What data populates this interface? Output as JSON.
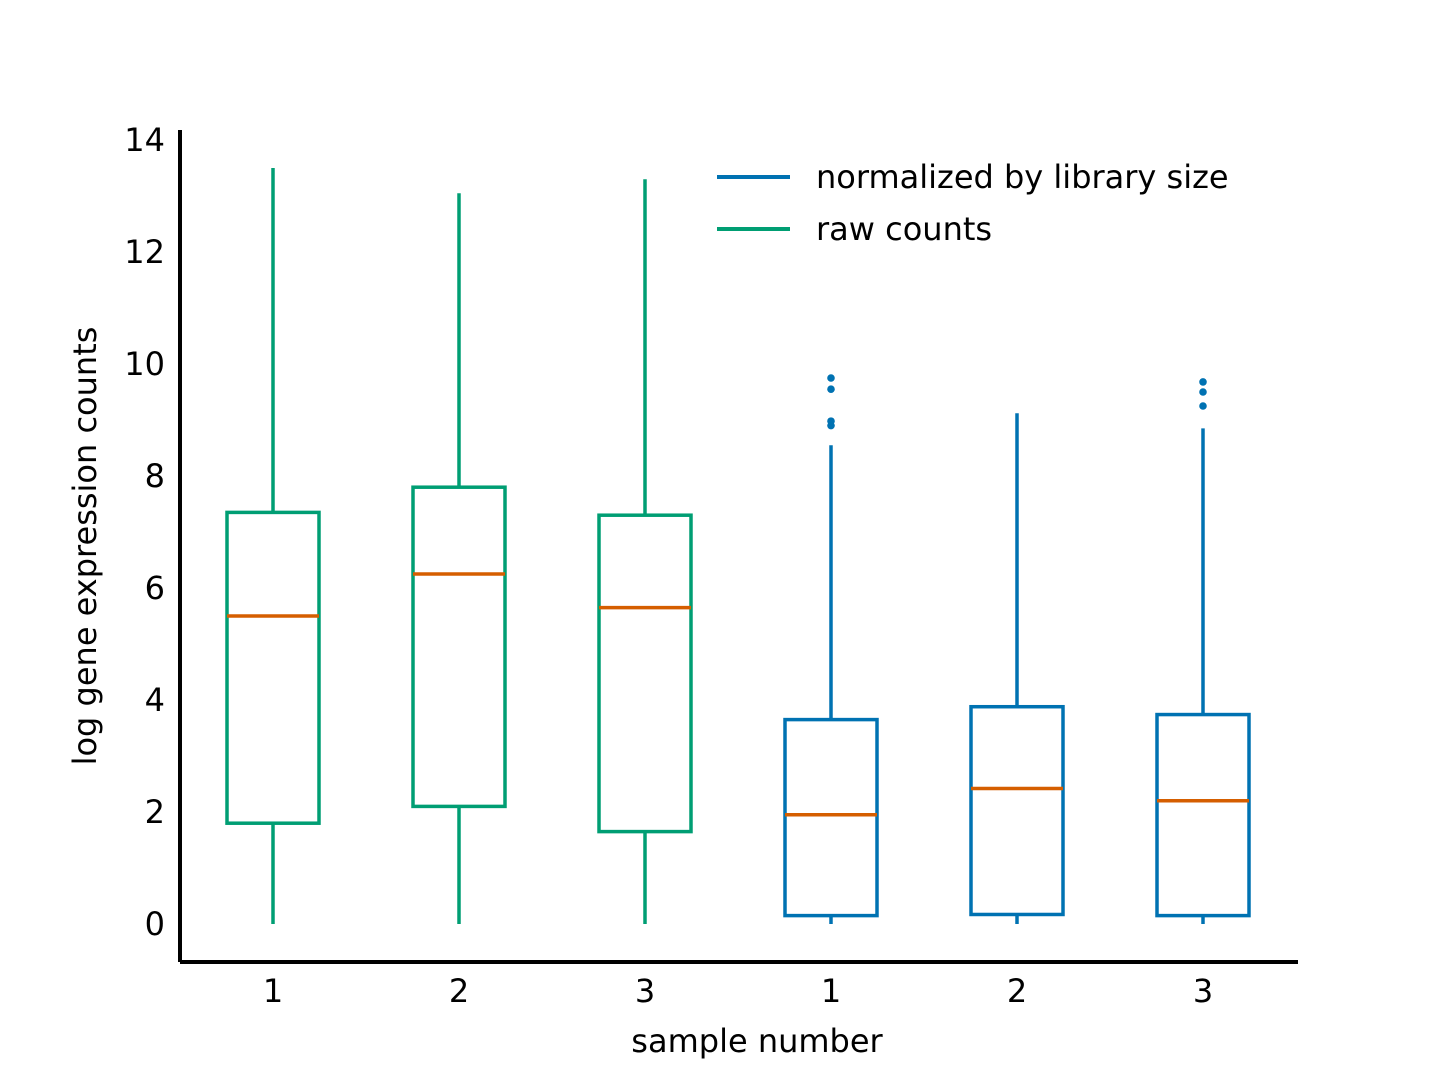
{
  "chart_data": {
    "type": "box",
    "title": "",
    "xlabel": "sample number",
    "ylabel": "log gene expression counts",
    "ylim": [
      -0.65,
      14.15
    ],
    "yticks": [
      0,
      2,
      4,
      6,
      8,
      10,
      12,
      14
    ],
    "categories": [
      "1",
      "2",
      "3",
      "1",
      "2",
      "3"
    ],
    "legend": {
      "placement": "top-right",
      "entries": [
        {
          "label": "normalized by library size",
          "color": "#0072b2"
        },
        {
          "label": "raw counts",
          "color": "#009e73"
        }
      ]
    },
    "median_color": "#d55e00",
    "series": [
      {
        "name": "raw counts",
        "color": "#009e73",
        "boxes": [
          {
            "category": "1",
            "whisker_low": 0.0,
            "q1": 1.8,
            "median": 5.5,
            "q3": 7.35,
            "whisker_high": 13.5,
            "outliers": []
          },
          {
            "category": "2",
            "whisker_low": 0.0,
            "q1": 2.1,
            "median": 6.25,
            "q3": 7.8,
            "whisker_high": 13.05,
            "outliers": []
          },
          {
            "category": "3",
            "whisker_low": 0.0,
            "q1": 1.65,
            "median": 5.65,
            "q3": 7.3,
            "whisker_high": 13.3,
            "outliers": []
          }
        ]
      },
      {
        "name": "normalized by library size",
        "color": "#0072b2",
        "boxes": [
          {
            "category": "1",
            "whisker_low": 0.0,
            "q1": 0.15,
            "median": 1.95,
            "q3": 3.65,
            "whisker_high": 8.55,
            "outliers": [
              8.9,
              8.98,
              9.55,
              9.75
            ]
          },
          {
            "category": "2",
            "whisker_low": 0.0,
            "q1": 0.17,
            "median": 2.42,
            "q3": 3.88,
            "whisker_high": 9.12,
            "outliers": []
          },
          {
            "category": "3",
            "whisker_low": 0.0,
            "q1": 0.15,
            "median": 2.2,
            "q3": 3.74,
            "whisker_high": 8.85,
            "outliers": [
              9.25,
              9.5,
              9.68
            ]
          }
        ]
      }
    ]
  }
}
